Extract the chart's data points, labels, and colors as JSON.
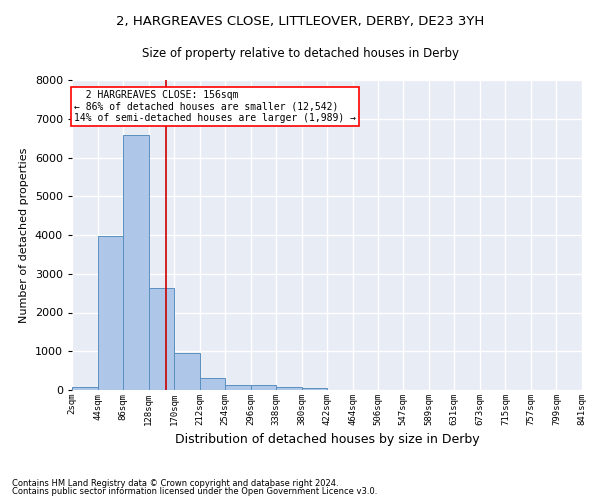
{
  "title1": "2, HARGREAVES CLOSE, LITTLEOVER, DERBY, DE23 3YH",
  "title2": "Size of property relative to detached houses in Derby",
  "xlabel": "Distribution of detached houses by size in Derby",
  "ylabel": "Number of detached properties",
  "footnote1": "Contains HM Land Registry data © Crown copyright and database right 2024.",
  "footnote2": "Contains public sector information licensed under the Open Government Licence v3.0.",
  "annotation_line1": "  2 HARGREAVES CLOSE: 156sqm",
  "annotation_line2": "← 86% of detached houses are smaller (12,542)",
  "annotation_line3": "14% of semi-detached houses are larger (1,989) →",
  "bar_edges": [
    2,
    44,
    86,
    128,
    170,
    212,
    254,
    296,
    338,
    380,
    422,
    464,
    506,
    547,
    589,
    631,
    673,
    715,
    757,
    799,
    841
  ],
  "bar_heights": [
    75,
    3980,
    6580,
    2620,
    955,
    305,
    130,
    120,
    80,
    50,
    0,
    0,
    0,
    0,
    0,
    0,
    0,
    0,
    0,
    0
  ],
  "bar_color": "#aec6e8",
  "bar_edgecolor": "#5a8fc0",
  "vline_x": 156,
  "vline_color": "#cc0000",
  "ylim": [
    0,
    8000
  ],
  "xlim": [
    2,
    841
  ],
  "background_color": "#e8edf5",
  "grid_color": "#ffffff",
  "tick_labels": [
    "2sqm",
    "44sqm",
    "86sqm",
    "128sqm",
    "170sqm",
    "212sqm",
    "254sqm",
    "296sqm",
    "338sqm",
    "380sqm",
    "422sqm",
    "464sqm",
    "506sqm",
    "547sqm",
    "589sqm",
    "631sqm",
    "673sqm",
    "715sqm",
    "757sqm",
    "799sqm",
    "841sqm"
  ],
  "title1_fontsize": 9.5,
  "title2_fontsize": 8.5,
  "ylabel_fontsize": 8,
  "xlabel_fontsize": 9
}
